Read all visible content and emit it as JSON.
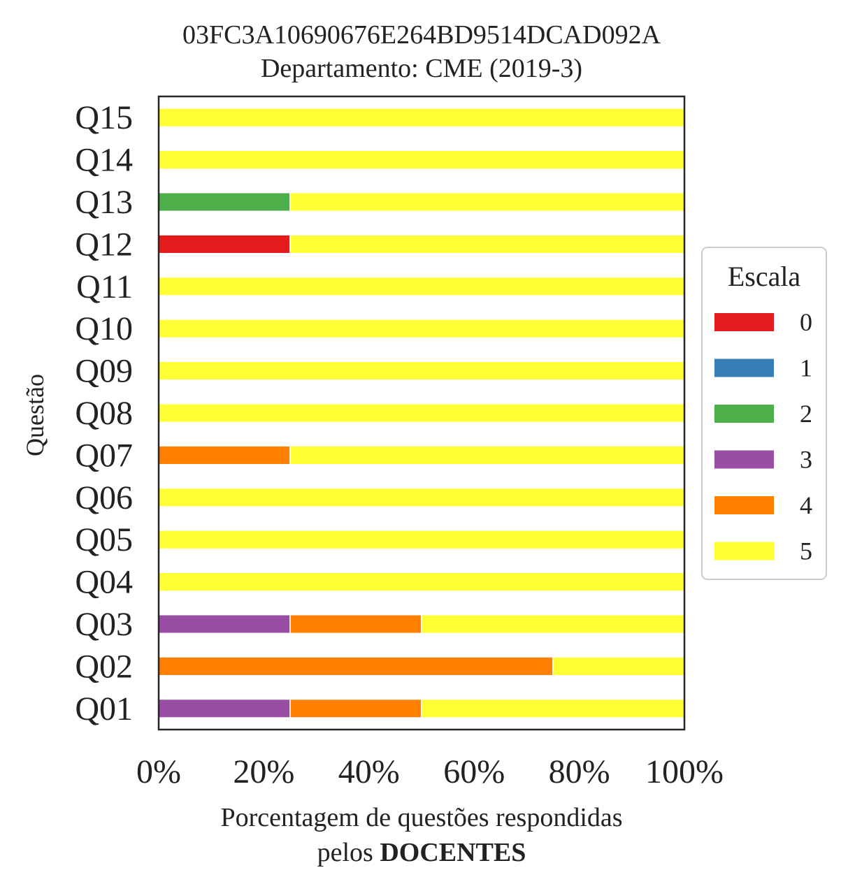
{
  "chart_data": {
    "type": "bar",
    "orientation": "horizontal",
    "stacked": true,
    "title": "03FC3A10690676E264BD9514DCAD092A",
    "subtitle": "Departamento: CME (2019-3)",
    "xlabel": "Porcentagem de questões respondidas",
    "xlabel_line2_prefix": "pelos ",
    "xlabel_line2_bold": "DOCENTES",
    "ylabel": "Questão",
    "xlim": [
      0,
      100
    ],
    "xticks": [
      0,
      20,
      40,
      60,
      80,
      100
    ],
    "xtick_labels": [
      "0%",
      "20%",
      "40%",
      "60%",
      "80%",
      "100%"
    ],
    "categories": [
      "Q01",
      "Q02",
      "Q03",
      "Q04",
      "Q05",
      "Q06",
      "Q07",
      "Q08",
      "Q09",
      "Q10",
      "Q11",
      "Q12",
      "Q13",
      "Q14",
      "Q15"
    ],
    "legend": {
      "title": "Escala",
      "placement": "center-right"
    },
    "series": [
      {
        "name": "0",
        "color": "#e41a1c",
        "values": [
          0,
          0,
          0,
          0,
          0,
          0,
          0,
          0,
          0,
          0,
          0,
          25,
          0,
          0,
          0
        ]
      },
      {
        "name": "1",
        "color": "#377eb8",
        "values": [
          0,
          0,
          0,
          0,
          0,
          0,
          0,
          0,
          0,
          0,
          0,
          0,
          0,
          0,
          0
        ]
      },
      {
        "name": "2",
        "color": "#4daf4a",
        "values": [
          0,
          0,
          0,
          0,
          0,
          0,
          0,
          0,
          0,
          0,
          0,
          0,
          25,
          0,
          0
        ]
      },
      {
        "name": "3",
        "color": "#984ea3",
        "values": [
          25,
          0,
          25,
          0,
          0,
          0,
          0,
          0,
          0,
          0,
          0,
          0,
          0,
          0,
          0
        ]
      },
      {
        "name": "4",
        "color": "#ff7f00",
        "values": [
          25,
          75,
          25,
          0,
          0,
          0,
          25,
          0,
          0,
          0,
          0,
          0,
          0,
          0,
          0
        ]
      },
      {
        "name": "5",
        "color": "#ffff33",
        "values": [
          50,
          25,
          50,
          100,
          100,
          100,
          75,
          100,
          100,
          100,
          100,
          75,
          75,
          100,
          100
        ]
      }
    ]
  }
}
